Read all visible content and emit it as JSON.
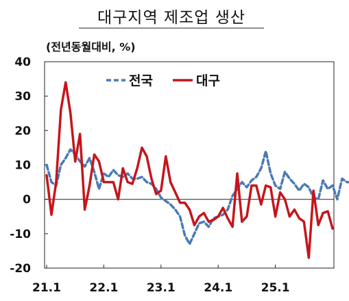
{
  "chart_data": {
    "type": "line",
    "title": "대구지역 제조업 생산",
    "unit_label": "(전년동월대비, %)",
    "x_tick_labels": [
      "21.1",
      "22.1",
      "23.1",
      "24.1",
      "25.1"
    ],
    "x_start": "2021-01",
    "ylim": [
      -20,
      40
    ],
    "y_ticks": [
      40,
      30,
      20,
      10,
      0,
      -10,
      -20
    ],
    "zero_line": true,
    "grid": false,
    "legend_position": "top-center",
    "series": [
      {
        "name": "전국",
        "style": "dashed",
        "color": "#4a7ab5",
        "values": [
          10,
          5,
          4,
          10,
          12,
          14.5,
          13,
          11,
          9.5,
          12,
          8,
          3,
          7.5,
          6.5,
          8.5,
          7,
          6.5,
          7.5,
          6,
          6,
          6.5,
          5,
          4.5,
          3,
          0.5,
          -0.5,
          -1.5,
          -3,
          -5,
          -10.5,
          -13,
          -10,
          -7,
          -6.5,
          -8,
          -5.5,
          -5,
          -4.5,
          -3,
          1,
          3,
          5,
          3.5,
          5.5,
          6.5,
          9,
          14,
          7.5,
          4,
          3,
          8,
          6,
          4.5,
          2.5,
          4.5,
          3.5,
          0.5,
          0,
          5.5,
          3,
          4,
          0,
          6,
          5,
          5,
          4.5,
          0
        ]
      },
      {
        "name": "대구",
        "style": "solid",
        "color": "#c4161c",
        "values": [
          7,
          -4.5,
          5,
          26,
          34,
          25,
          11,
          19,
          -3,
          4,
          13,
          11,
          5,
          5,
          5,
          0,
          9,
          5,
          4.5,
          9,
          15,
          12.5,
          6,
          1.5,
          2.5,
          12.5,
          5,
          2,
          -1,
          -1,
          -3,
          -7.5,
          -5,
          -4,
          -6.5,
          -6,
          -5,
          -2.5,
          -5.5,
          -8,
          7.5,
          -6.5,
          -5,
          4,
          4,
          -1.5,
          4,
          3.5,
          -5,
          2,
          0,
          -5,
          -3,
          -5.5,
          -6.5,
          -17,
          2.5,
          -7.5,
          -4,
          -3.5,
          -8.5
        ]
      }
    ]
  }
}
